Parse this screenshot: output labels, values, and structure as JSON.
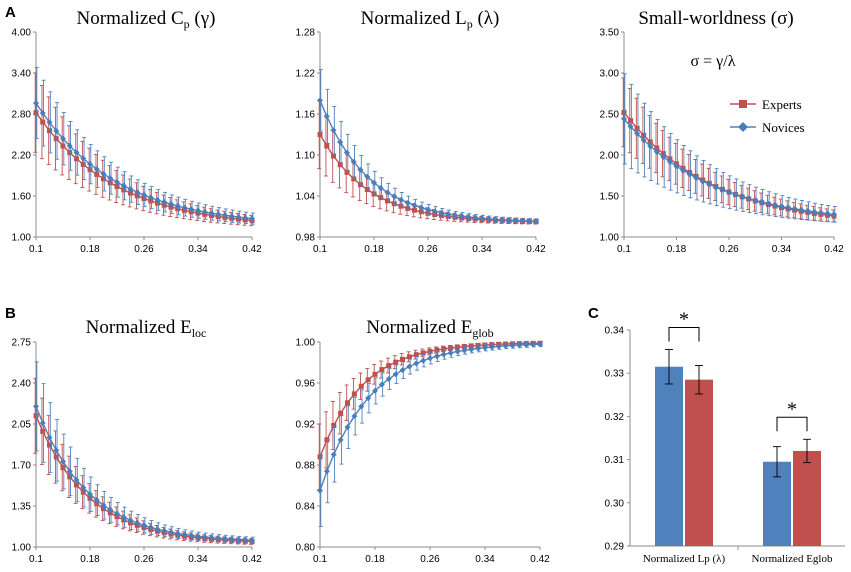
{
  "colors": {
    "experts": "#c0504d",
    "novices": "#4f81bd",
    "experts_marker": "#c0504d",
    "novices_marker": "#4a7ebb",
    "axis": "#8c8c8c"
  },
  "legend": {
    "experts": "Experts",
    "novices": "Novices"
  },
  "panel_labels": {
    "a": "A",
    "b": "B",
    "c": "C"
  },
  "formula": "σ = γ/λ",
  "chart_data": [
    {
      "id": "cp",
      "type": "line",
      "title_main": "Normalized C",
      "title_sub": "p",
      "title_tail": " (γ)",
      "ylim": [
        1.0,
        4.0
      ],
      "yticks": [
        "1.00",
        "1.60",
        "2.20",
        "2.80",
        "3.40",
        "4.00"
      ],
      "xticks": [
        "0.1",
        "0.18",
        "0.26",
        "0.34",
        "0.42"
      ],
      "xlim": [
        0.1,
        0.42
      ],
      "series": [
        {
          "name": "Experts",
          "start": 2.82,
          "end": 1.13,
          "k": 8.5,
          "err_start": 0.58,
          "err_end": 0.04
        },
        {
          "name": "Novices",
          "start": 2.96,
          "end": 1.15,
          "k": 8.5,
          "err_start": 0.52,
          "err_end": 0.05
        }
      ]
    },
    {
      "id": "lp",
      "type": "line",
      "title_main": "Normalized L",
      "title_sub": "p",
      "title_tail": " (λ)",
      "ylim": [
        0.98,
        1.28
      ],
      "yticks": [
        "0.98",
        "1.04",
        "1.10",
        "1.16",
        "1.22",
        "1.28"
      ],
      "xticks": [
        "0.1",
        "0.18",
        "0.26",
        "0.34",
        "0.42"
      ],
      "xlim": [
        0.1,
        0.42
      ],
      "series": [
        {
          "name": "Experts",
          "start": 1.13,
          "end": 1.001,
          "k": 14,
          "err_start": 0.05,
          "err_end": 0.003
        },
        {
          "name": "Novices",
          "start": 1.18,
          "end": 1.001,
          "k": 14,
          "err_start": 0.045,
          "err_end": 0.003
        }
      ]
    },
    {
      "id": "sigma",
      "type": "line",
      "title_main": "Small-worldness (σ)",
      "title_sub": "",
      "title_tail": "",
      "ylim": [
        1.0,
        3.5
      ],
      "yticks": [
        "1.00",
        "1.50",
        "2.00",
        "2.50",
        "3.00",
        "3.50"
      ],
      "xticks": [
        "0.1",
        "0.18",
        "0.26",
        "0.34",
        "0.42"
      ],
      "xlim": [
        0.1,
        0.42
      ],
      "series": [
        {
          "name": "Experts",
          "start": 2.52,
          "end": 1.13,
          "k": 7.5,
          "err_start": 0.42,
          "err_end": 0.04
        },
        {
          "name": "Novices",
          "start": 2.44,
          "end": 1.16,
          "k": 7.5,
          "err_start": 0.55,
          "err_end": 0.05
        }
      ]
    },
    {
      "id": "eloc",
      "type": "line",
      "title_main": "Normalized E",
      "title_sub": "loc",
      "title_tail": "",
      "ylim": [
        1.0,
        2.75
      ],
      "yticks": [
        "1.00",
        "1.35",
        "1.70",
        "2.05",
        "2.40",
        "2.75"
      ],
      "xticks": [
        "0.1",
        "0.18",
        "0.26",
        "0.34",
        "0.42"
      ],
      "xlim": [
        0.1,
        0.42
      ],
      "series": [
        {
          "name": "Experts",
          "start": 2.12,
          "end": 1.03,
          "k": 13,
          "err_start": 0.32,
          "err_end": 0.02
        },
        {
          "name": "Novices",
          "start": 2.2,
          "end": 1.04,
          "k": 13,
          "err_start": 0.38,
          "err_end": 0.02
        }
      ]
    },
    {
      "id": "eglob",
      "type": "line",
      "title_main": "Normalized E",
      "title_sub": "glob",
      "title_tail": "",
      "ylim": [
        0.8,
        1.0
      ],
      "yticks": [
        "0.80",
        "0.84",
        "0.88",
        "0.92",
        "0.96",
        "1.00"
      ],
      "xticks": [
        "0.1",
        "0.18",
        "0.26",
        "0.34",
        "0.42"
      ],
      "xlim": [
        0.1,
        0.42
      ],
      "series": [
        {
          "name": "Experts",
          "start": 0.888,
          "end": 0.9995,
          "k": 16,
          "err_start": 0.032,
          "err_end": 0.001
        },
        {
          "name": "Novices",
          "start": 0.855,
          "end": 0.9995,
          "k": 14,
          "err_start": 0.035,
          "err_end": 0.002
        }
      ]
    },
    {
      "id": "bars",
      "type": "bar",
      "ylim": [
        0.29,
        0.34
      ],
      "yticks": [
        "0.29",
        "0.30",
        "0.31",
        "0.32",
        "0.33",
        "0.34"
      ],
      "categories": [
        "Normalized Lp (λ)",
        "Normalized Eglob"
      ],
      "series": [
        {
          "name": "Novices",
          "values": [
            0.3315,
            0.3095
          ],
          "errors": [
            0.004,
            0.0035
          ]
        },
        {
          "name": "Experts",
          "values": [
            0.3285,
            0.312
          ],
          "errors": [
            0.0033,
            0.0027
          ]
        }
      ],
      "significance": [
        "*",
        "*"
      ]
    }
  ]
}
